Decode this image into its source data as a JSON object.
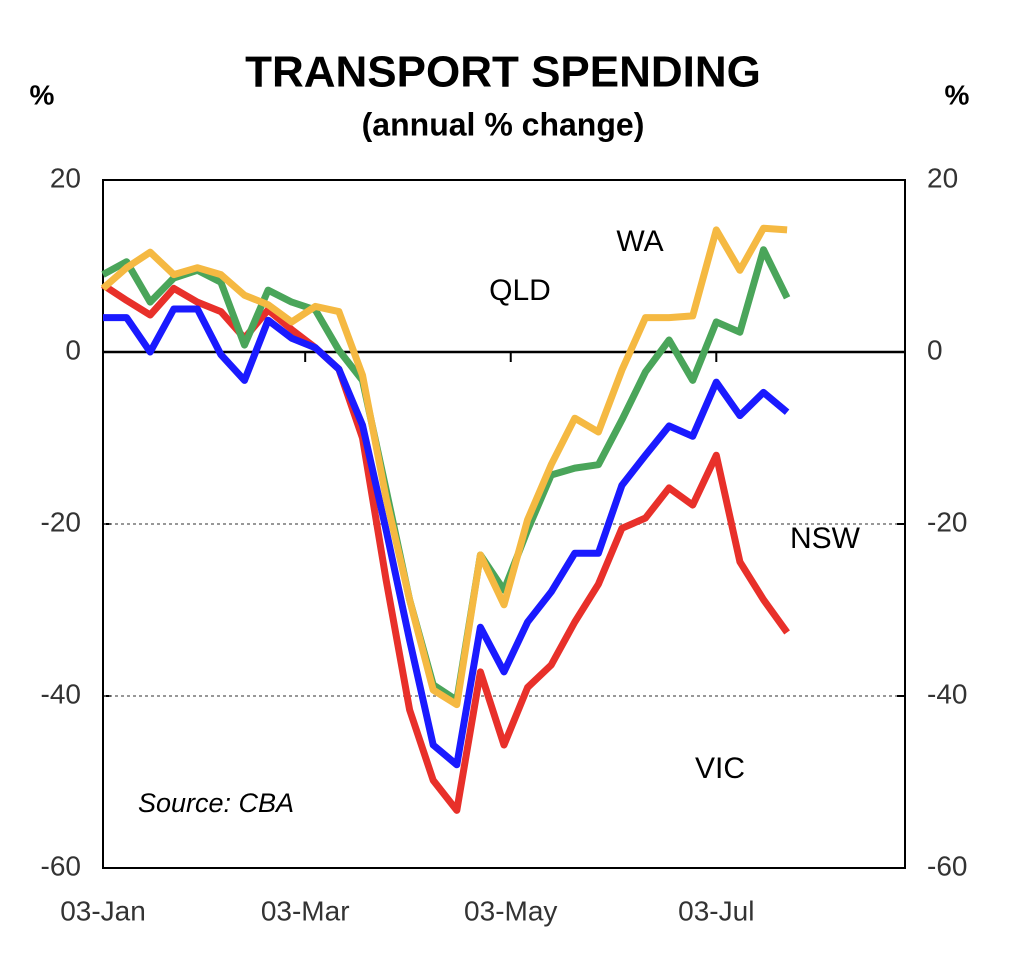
{
  "chart_data": {
    "type": "line",
    "title": "TRANSPORT SPENDING",
    "subtitle": "(annual % change)",
    "y_label": "%",
    "y2_label": "%",
    "annotation": "Source: CBA",
    "x": [
      0,
      7,
      14,
      21,
      28,
      35,
      42,
      49,
      56,
      63,
      70,
      77,
      84,
      91,
      98,
      105,
      112,
      119,
      126,
      133,
      140,
      147,
      154,
      161,
      168,
      175,
      182,
      189,
      196,
      203
    ],
    "xlim": [
      0,
      238
    ],
    "xticks": [
      {
        "value": 0,
        "label": "03-Jan"
      },
      {
        "value": 60,
        "label": "03-Mar"
      },
      {
        "value": 121,
        "label": "03-May"
      },
      {
        "value": 182,
        "label": "03-Jul"
      }
    ],
    "ylim": [
      -60,
      20
    ],
    "yticks": [
      -60,
      -40,
      -20,
      0,
      20
    ],
    "y2lim": [
      -60,
      20
    ],
    "y2ticks": [
      -60,
      -40,
      -20,
      0,
      20
    ],
    "grid": true,
    "series": [
      {
        "name": "VIC",
        "color": "#e8302a",
        "values": [
          7.8,
          6,
          4.3,
          7.4,
          5.8,
          4.7,
          1.6,
          4.9,
          2.6,
          0.5,
          -2,
          -10,
          -26.5,
          -41.6,
          -49.8,
          -53.3,
          -37.2,
          -45.7,
          -39,
          -36.4,
          -31.4,
          -27,
          -20.5,
          -19.3,
          -15.8,
          -17.8,
          -12,
          -24.4,
          -28.8,
          -32.6
        ]
      },
      {
        "name": "NSW",
        "color": "#1a1aff",
        "values": [
          4,
          4,
          0,
          5,
          5,
          -0.3,
          -3.3,
          3.7,
          1.6,
          0.5,
          -2,
          -8.5,
          -20.7,
          -33.5,
          -45.7,
          -48,
          -32,
          -37.2,
          -31.4,
          -27.9,
          -23.4,
          -23.4,
          -15.5,
          -12,
          -8.6,
          -9.8,
          -3.5,
          -7.4,
          -4.7,
          -7
        ]
      },
      {
        "name": "QLD",
        "color": "#4aa55a",
        "values": [
          9,
          10.5,
          5.8,
          8.6,
          9.5,
          8.1,
          0.8,
          7.2,
          5.8,
          4.9,
          0.2,
          -3.3,
          -16,
          -28.8,
          -38.7,
          -40.5,
          -23.6,
          -27.7,
          -20.7,
          -14.3,
          -13.5,
          -13.1,
          -7.9,
          -2.3,
          1.4,
          -3.3,
          3.5,
          2.3,
          11.9,
          6.3
        ]
      },
      {
        "name": "WA",
        "color": "#f5b942",
        "values": [
          7.4,
          9.8,
          11.6,
          9,
          9.8,
          9,
          6.6,
          5.5,
          3.5,
          5.3,
          4.7,
          -2.7,
          -17,
          -28.8,
          -39.3,
          -41,
          -23.6,
          -29.4,
          -19.5,
          -13.1,
          -7.7,
          -9.3,
          -2.1,
          4,
          4,
          4.2,
          14.2,
          9.5,
          14.4,
          14.2
        ]
      }
    ]
  }
}
